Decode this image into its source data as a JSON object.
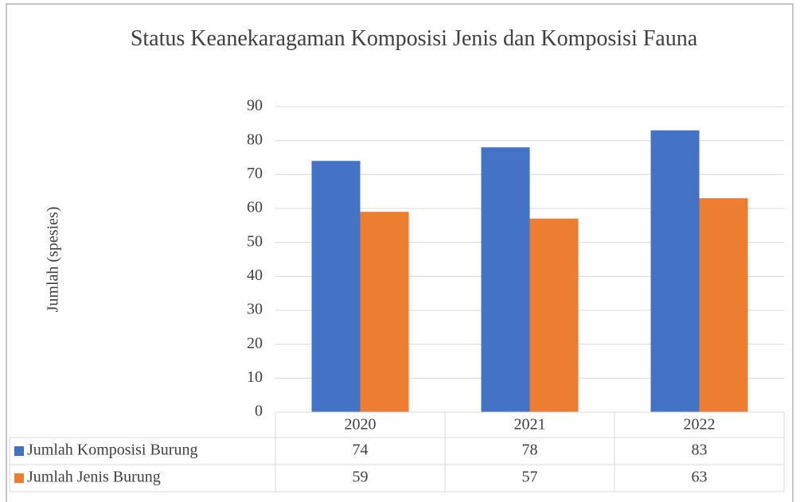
{
  "chart_data": {
    "type": "bar",
    "title": "Status Keanekaragaman Komposisi Jenis dan Komposisi Fauna",
    "y_label": "Jumlah (spesies)",
    "categories": [
      "2020",
      "2021",
      "2022"
    ],
    "series": [
      {
        "name": "Jumlah Komposisi Burung",
        "color": "#4472c4",
        "values": [
          74,
          78,
          83
        ]
      },
      {
        "name": "Jumlah Jenis Burung",
        "color": "#ed7d31",
        "values": [
          59,
          57,
          63
        ]
      }
    ],
    "ylim": [
      0,
      90
    ],
    "yticks": [
      0,
      10,
      20,
      30,
      40,
      50,
      60,
      70,
      80,
      90
    ],
    "grid": true,
    "data_table": true
  }
}
